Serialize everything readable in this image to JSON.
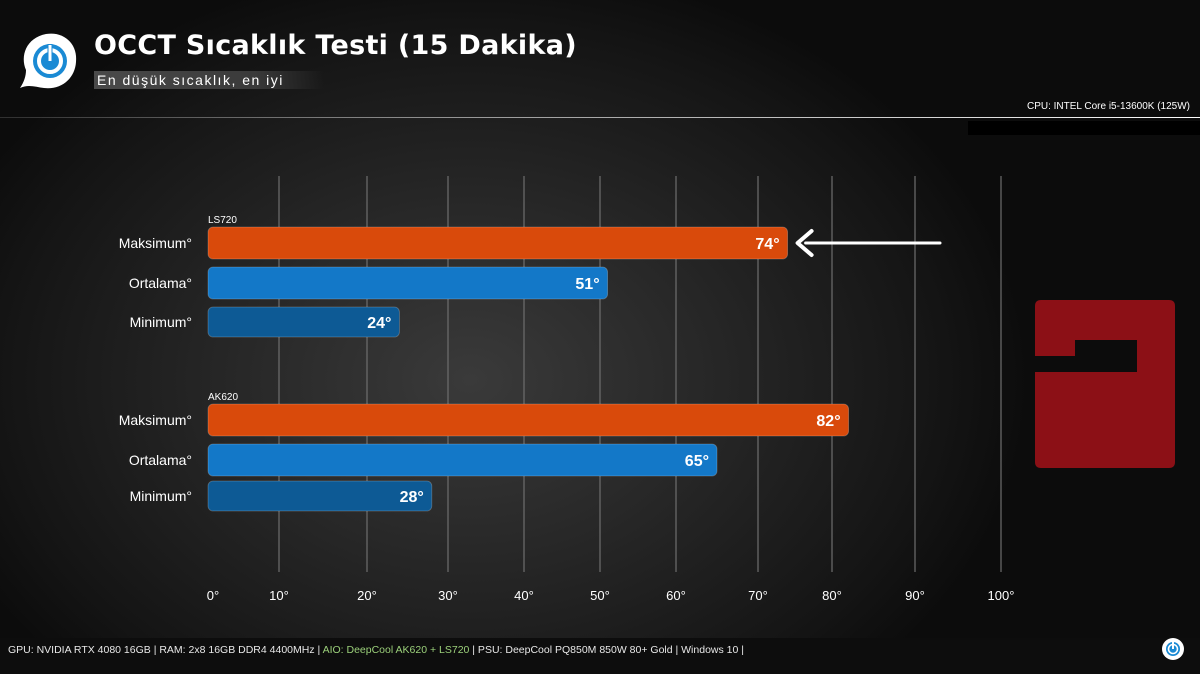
{
  "header": {
    "title": "OCCT Sıcaklık Testi (15 Dakika)",
    "subtitle": "En düşük sıcaklık, en iyi",
    "cpu": "CPU: INTEL Core i5-13600K (125W)"
  },
  "footer": {
    "part1": "GPU: NVIDIA RTX 4080 16GB | RAM: 2x8 16GB DDR4 4400MHz | ",
    "aio": "AIO: DeepCool AK620 + LS720",
    "part2": " | PSU: DeepCool PQ850M 850W 80+ Gold | Windows 10 |"
  },
  "colors": {
    "max": "#d94a0b",
    "avg": "#1378c8",
    "min": "#0d5a95",
    "brand": "#8c1016",
    "highlight": "#9bd07a"
  },
  "chart_data": {
    "type": "bar",
    "orientation": "horizontal",
    "title": "OCCT Sıcaklık Testi (15 Dakika)",
    "xlim": [
      0,
      100
    ],
    "x_ticks": [
      0,
      10,
      20,
      30,
      40,
      50,
      60,
      70,
      80,
      90,
      100
    ],
    "tick_suffix": "°",
    "grid": true,
    "groups": [
      {
        "name": "LS720",
        "bars": [
          {
            "label": "Maksimum°",
            "value": 74,
            "kind": "max"
          },
          {
            "label": "Ortalama°",
            "value": 51,
            "kind": "avg"
          },
          {
            "label": "Minimum°",
            "value": 24,
            "kind": "min"
          }
        ]
      },
      {
        "name": "AK620",
        "bars": [
          {
            "label": "Maksimum°",
            "value": 82,
            "kind": "max"
          },
          {
            "label": "Ortalama°",
            "value": 65,
            "kind": "avg"
          },
          {
            "label": "Minimum°",
            "value": 28,
            "kind": "min"
          }
        ]
      }
    ],
    "annotation": {
      "type": "arrow",
      "target": "LS720 Maksimum°"
    }
  }
}
